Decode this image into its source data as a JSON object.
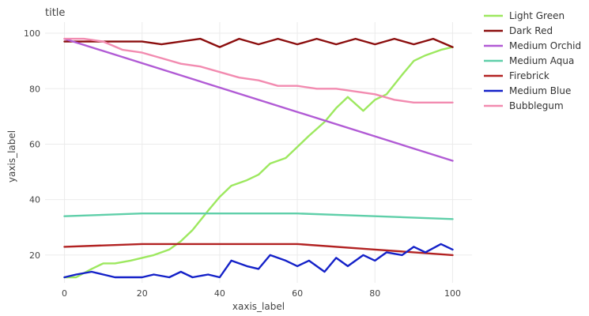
{
  "chart_data": {
    "type": "line",
    "title": "title",
    "xlabel": "xaxis_label",
    "ylabel": "yaxis_label",
    "xlim": [
      -5,
      105
    ],
    "ylim": [
      10,
      104
    ],
    "x_ticks": [
      0,
      20,
      40,
      60,
      80,
      100
    ],
    "y_ticks": [
      20,
      40,
      60,
      80,
      100
    ],
    "grid": true,
    "legend_position": "right",
    "series": [
      {
        "name": "Light Green",
        "color": "#9de85f",
        "x": [
          0,
          3,
          7,
          10,
          13,
          17,
          20,
          23,
          27,
          30,
          33,
          37,
          40,
          43,
          47,
          50,
          53,
          57,
          60,
          63,
          67,
          70,
          73,
          77,
          80,
          83,
          87,
          90,
          93,
          97,
          100
        ],
        "y": [
          12,
          12,
          15,
          17,
          17,
          18,
          19,
          20,
          22,
          25,
          29,
          36,
          41,
          45,
          47,
          49,
          53,
          55,
          59,
          63,
          68,
          73,
          77,
          72,
          76,
          78,
          85,
          90,
          92,
          94,
          95
        ]
      },
      {
        "name": "Dark Red",
        "color": "#8b0e0e",
        "x": [
          0,
          5,
          10,
          15,
          20,
          25,
          30,
          35,
          40,
          45,
          50,
          55,
          60,
          65,
          70,
          75,
          80,
          85,
          90,
          95,
          100
        ],
        "y": [
          97,
          97,
          97,
          97,
          97,
          96,
          97,
          98,
          95,
          98,
          96,
          98,
          96,
          98,
          96,
          98,
          96,
          98,
          96,
          98,
          95
        ]
      },
      {
        "name": "Medium Orchid",
        "color": "#b15bd5",
        "x": [
          0,
          100
        ],
        "y": [
          98,
          54
        ]
      },
      {
        "name": "Medium Aqua",
        "color": "#5fcfa9",
        "x": [
          0,
          20,
          40,
          60,
          80,
          100
        ],
        "y": [
          34,
          35,
          35,
          35,
          34,
          33
        ]
      },
      {
        "name": "Firebrick",
        "color": "#b22222",
        "x": [
          0,
          20,
          40,
          60,
          80,
          100
        ],
        "y": [
          23,
          24,
          24,
          24,
          22,
          20
        ]
      },
      {
        "name": "Medium Blue",
        "color": "#1421c8",
        "x": [
          0,
          3,
          7,
          10,
          13,
          17,
          20,
          23,
          27,
          30,
          33,
          37,
          40,
          43,
          47,
          50,
          53,
          57,
          60,
          63,
          67,
          70,
          73,
          77,
          80,
          83,
          87,
          90,
          93,
          97,
          100
        ],
        "y": [
          12,
          13,
          14,
          13,
          12,
          12,
          12,
          13,
          12,
          14,
          12,
          13,
          12,
          18,
          16,
          15,
          20,
          18,
          16,
          18,
          14,
          19,
          16,
          20,
          18,
          21,
          20,
          23,
          21,
          24,
          22
        ]
      },
      {
        "name": "Bubblegum",
        "color": "#f28bb0",
        "x": [
          0,
          5,
          10,
          15,
          20,
          25,
          30,
          35,
          40,
          45,
          50,
          55,
          60,
          65,
          70,
          75,
          80,
          85,
          90,
          95,
          100
        ],
        "y": [
          98,
          98,
          97,
          94,
          93,
          91,
          89,
          88,
          86,
          84,
          83,
          81,
          81,
          80,
          80,
          79,
          78,
          76,
          75,
          75,
          75
        ]
      }
    ]
  }
}
